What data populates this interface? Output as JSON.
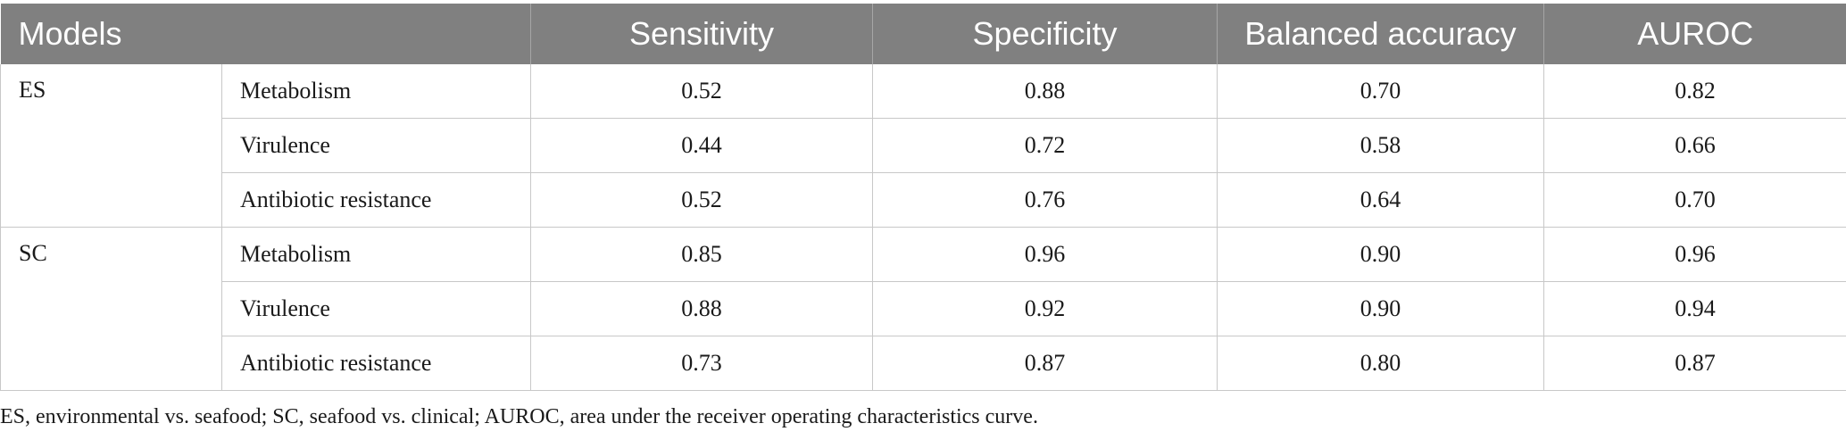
{
  "table": {
    "headers": [
      "Models",
      "Sensitivity",
      "Specificity",
      "Balanced accuracy",
      "AUROC"
    ],
    "groups": [
      {
        "label": "ES",
        "rows": [
          {
            "name": "Metabolism",
            "values": [
              "0.52",
              "0.88",
              "0.70",
              "0.82"
            ]
          },
          {
            "name": "Virulence",
            "values": [
              "0.44",
              "0.72",
              "0.58",
              "0.66"
            ]
          },
          {
            "name": "Antibiotic resistance",
            "values": [
              "0.52",
              "0.76",
              "0.64",
              "0.70"
            ]
          }
        ]
      },
      {
        "label": "SC",
        "rows": [
          {
            "name": "Metabolism",
            "values": [
              "0.85",
              "0.96",
              "0.90",
              "0.96"
            ]
          },
          {
            "name": "Virulence",
            "values": [
              "0.88",
              "0.92",
              "0.90",
              "0.94"
            ]
          },
          {
            "name": "Antibiotic resistance",
            "values": [
              "0.73",
              "0.87",
              "0.80",
              "0.87"
            ]
          }
        ]
      }
    ]
  },
  "footnote": "ES, environmental vs. seafood; SC, seafood vs. clinical; AUROC, area under the receiver operating characteristics curve.",
  "colors": {
    "header_bg": "#808080",
    "header_text": "#ffffff",
    "border": "#c8c8c8"
  }
}
